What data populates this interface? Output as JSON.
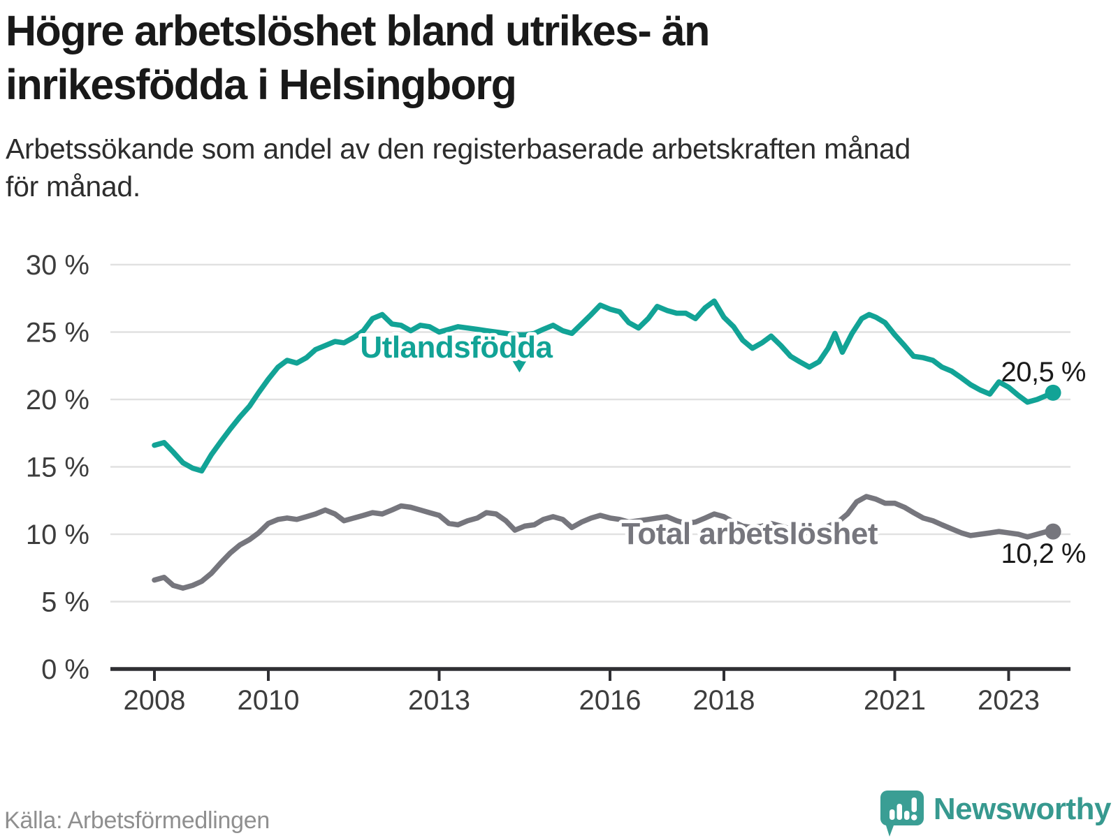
{
  "header": {
    "title_line1": "Högre arbetslöshet bland utrikes- än",
    "title_line2": "inrikesfödda i Helsingborg",
    "subtitle_line1": "Arbetssökande som andel av den registerbaserade arbetskraften månad",
    "subtitle_line2": "för månad."
  },
  "footer": {
    "source": "Källa: Arbetsförmedlingen",
    "brand": "Newsworthy"
  },
  "colors": {
    "teal": "#12a396",
    "gray": "#76767d",
    "grid": "#e1e1e1",
    "axis": "#2f2f33",
    "tick_label": "#3d3d3d",
    "value_label": "#1a1a1a",
    "logo": "#3a9e94"
  },
  "chart_data": {
    "type": "line",
    "title": "Högre arbetslöshet bland utrikes- än inrikesfödda i Helsingborg",
    "subtitle": "Arbetssökande som andel av den registerbaserade arbetskraften månad för månad.",
    "xlabel": "",
    "ylabel": "",
    "grid": "horizontal",
    "x_range": [
      2007.9,
      2024.3
    ],
    "y_range": [
      0,
      31
    ],
    "x_ticks": [
      {
        "t": 2008,
        "label": "2008"
      },
      {
        "t": 2010,
        "label": "2010"
      },
      {
        "t": 2013,
        "label": "2013"
      },
      {
        "t": 2016,
        "label": "2016"
      },
      {
        "t": 2018,
        "label": "2018"
      },
      {
        "t": 2021,
        "label": "2021"
      },
      {
        "t": 2023,
        "label": "2023"
      }
    ],
    "y_ticks": [
      {
        "v": 30,
        "label": "30 %"
      },
      {
        "v": 25,
        "label": "25 %"
      },
      {
        "v": 20,
        "label": "20 %"
      },
      {
        "v": 15,
        "label": "15 %"
      },
      {
        "v": 10,
        "label": "10 %"
      },
      {
        "v": 5,
        "label": "5 %"
      },
      {
        "v": 0,
        "label": "0 %"
      }
    ],
    "series": [
      {
        "id": "utlandsfodda",
        "name": "Utlandsfödda",
        "color": "#12a396",
        "end_label": "20,5 %",
        "last_value": 20.5,
        "points": [
          [
            2008.0,
            16.6
          ],
          [
            2008.17,
            16.8
          ],
          [
            2008.33,
            16.1
          ],
          [
            2008.5,
            15.3
          ],
          [
            2008.67,
            14.9
          ],
          [
            2008.83,
            14.7
          ],
          [
            2009.0,
            15.9
          ],
          [
            2009.17,
            16.9
          ],
          [
            2009.33,
            17.8
          ],
          [
            2009.5,
            18.7
          ],
          [
            2009.67,
            19.5
          ],
          [
            2009.83,
            20.5
          ],
          [
            2010.0,
            21.5
          ],
          [
            2010.17,
            22.4
          ],
          [
            2010.33,
            22.9
          ],
          [
            2010.5,
            22.7
          ],
          [
            2010.67,
            23.1
          ],
          [
            2010.83,
            23.7
          ],
          [
            2011.0,
            24.0
          ],
          [
            2011.17,
            24.3
          ],
          [
            2011.33,
            24.2
          ],
          [
            2011.5,
            24.6
          ],
          [
            2011.67,
            25.1
          ],
          [
            2011.83,
            26.0
          ],
          [
            2012.0,
            26.3
          ],
          [
            2012.17,
            25.6
          ],
          [
            2012.33,
            25.5
          ],
          [
            2012.5,
            25.1
          ],
          [
            2012.67,
            25.5
          ],
          [
            2012.83,
            25.4
          ],
          [
            2013.0,
            25.0
          ],
          [
            2013.17,
            25.2
          ],
          [
            2013.33,
            25.4
          ],
          [
            2013.5,
            25.3
          ],
          [
            2013.67,
            25.2
          ],
          [
            2013.83,
            25.1
          ],
          [
            2014.0,
            25.0
          ],
          [
            2014.17,
            24.9
          ],
          [
            2014.33,
            24.8
          ],
          [
            2014.5,
            24.8
          ],
          [
            2014.67,
            24.9
          ],
          [
            2014.83,
            25.2
          ],
          [
            2015.0,
            25.5
          ],
          [
            2015.17,
            25.1
          ],
          [
            2015.33,
            24.9
          ],
          [
            2015.5,
            25.6
          ],
          [
            2015.67,
            26.3
          ],
          [
            2015.83,
            27.0
          ],
          [
            2016.0,
            26.7
          ],
          [
            2016.17,
            26.5
          ],
          [
            2016.33,
            25.7
          ],
          [
            2016.5,
            25.3
          ],
          [
            2016.67,
            26.0
          ],
          [
            2016.83,
            26.9
          ],
          [
            2017.0,
            26.6
          ],
          [
            2017.17,
            26.4
          ],
          [
            2017.33,
            26.4
          ],
          [
            2017.5,
            26.0
          ],
          [
            2017.67,
            26.8
          ],
          [
            2017.83,
            27.3
          ],
          [
            2018.0,
            26.1
          ],
          [
            2018.17,
            25.4
          ],
          [
            2018.33,
            24.4
          ],
          [
            2018.5,
            23.8
          ],
          [
            2018.67,
            24.2
          ],
          [
            2018.83,
            24.7
          ],
          [
            2019.0,
            24.0
          ],
          [
            2019.17,
            23.2
          ],
          [
            2019.33,
            22.8
          ],
          [
            2019.5,
            22.4
          ],
          [
            2019.67,
            22.8
          ],
          [
            2019.83,
            23.8
          ],
          [
            2019.95,
            24.9
          ],
          [
            2020.08,
            23.5
          ],
          [
            2020.25,
            24.9
          ],
          [
            2020.42,
            26.0
          ],
          [
            2020.55,
            26.3
          ],
          [
            2020.67,
            26.1
          ],
          [
            2020.83,
            25.7
          ],
          [
            2021.0,
            24.8
          ],
          [
            2021.17,
            24.0
          ],
          [
            2021.33,
            23.2
          ],
          [
            2021.5,
            23.1
          ],
          [
            2021.67,
            22.9
          ],
          [
            2021.83,
            22.4
          ],
          [
            2022.0,
            22.1
          ],
          [
            2022.17,
            21.6
          ],
          [
            2022.33,
            21.1
          ],
          [
            2022.5,
            20.7
          ],
          [
            2022.67,
            20.4
          ],
          [
            2022.83,
            21.3
          ],
          [
            2023.0,
            20.9
          ],
          [
            2023.17,
            20.3
          ],
          [
            2023.33,
            19.8
          ],
          [
            2023.5,
            20.0
          ],
          [
            2023.67,
            20.3
          ],
          [
            2023.78,
            20.5
          ]
        ]
      },
      {
        "id": "total",
        "name": "Total arbetslöshet",
        "color": "#76767d",
        "end_label": "10,2 %",
        "last_value": 10.2,
        "points": [
          [
            2008.0,
            6.6
          ],
          [
            2008.17,
            6.8
          ],
          [
            2008.33,
            6.2
          ],
          [
            2008.5,
            6.0
          ],
          [
            2008.67,
            6.2
          ],
          [
            2008.83,
            6.5
          ],
          [
            2009.0,
            7.1
          ],
          [
            2009.17,
            7.9
          ],
          [
            2009.33,
            8.6
          ],
          [
            2009.5,
            9.2
          ],
          [
            2009.67,
            9.6
          ],
          [
            2009.83,
            10.1
          ],
          [
            2010.0,
            10.8
          ],
          [
            2010.17,
            11.1
          ],
          [
            2010.33,
            11.2
          ],
          [
            2010.5,
            11.1
          ],
          [
            2010.67,
            11.3
          ],
          [
            2010.83,
            11.5
          ],
          [
            2011.0,
            11.8
          ],
          [
            2011.17,
            11.5
          ],
          [
            2011.33,
            11.0
          ],
          [
            2011.5,
            11.2
          ],
          [
            2011.67,
            11.4
          ],
          [
            2011.83,
            11.6
          ],
          [
            2012.0,
            11.5
          ],
          [
            2012.17,
            11.8
          ],
          [
            2012.33,
            12.1
          ],
          [
            2012.5,
            12.0
          ],
          [
            2012.67,
            11.8
          ],
          [
            2012.83,
            11.6
          ],
          [
            2013.0,
            11.4
          ],
          [
            2013.17,
            10.8
          ],
          [
            2013.33,
            10.7
          ],
          [
            2013.5,
            11.0
          ],
          [
            2013.67,
            11.2
          ],
          [
            2013.83,
            11.6
          ],
          [
            2014.0,
            11.5
          ],
          [
            2014.17,
            11.0
          ],
          [
            2014.33,
            10.3
          ],
          [
            2014.5,
            10.6
          ],
          [
            2014.67,
            10.7
          ],
          [
            2014.83,
            11.1
          ],
          [
            2015.0,
            11.3
          ],
          [
            2015.17,
            11.1
          ],
          [
            2015.33,
            10.5
          ],
          [
            2015.5,
            10.9
          ],
          [
            2015.67,
            11.2
          ],
          [
            2015.83,
            11.4
          ],
          [
            2016.0,
            11.2
          ],
          [
            2016.17,
            11.1
          ],
          [
            2016.33,
            10.9
          ],
          [
            2016.5,
            11.0
          ],
          [
            2016.67,
            11.1
          ],
          [
            2016.83,
            11.2
          ],
          [
            2017.0,
            11.3
          ],
          [
            2017.17,
            11.0
          ],
          [
            2017.33,
            10.8
          ],
          [
            2017.5,
            10.9
          ],
          [
            2017.67,
            11.2
          ],
          [
            2017.83,
            11.5
          ],
          [
            2018.0,
            11.3
          ],
          [
            2018.17,
            10.9
          ],
          [
            2018.33,
            10.6
          ],
          [
            2018.5,
            10.5
          ],
          [
            2018.67,
            10.6
          ],
          [
            2018.83,
            10.8
          ],
          [
            2019.0,
            10.6
          ],
          [
            2019.17,
            10.4
          ],
          [
            2019.33,
            10.2
          ],
          [
            2019.5,
            10.1
          ],
          [
            2019.67,
            10.3
          ],
          [
            2019.83,
            10.6
          ],
          [
            2020.0,
            10.9
          ],
          [
            2020.17,
            11.5
          ],
          [
            2020.33,
            12.4
          ],
          [
            2020.5,
            12.8
          ],
          [
            2020.67,
            12.6
          ],
          [
            2020.83,
            12.3
          ],
          [
            2021.0,
            12.3
          ],
          [
            2021.17,
            12.0
          ],
          [
            2021.33,
            11.6
          ],
          [
            2021.5,
            11.2
          ],
          [
            2021.67,
            11.0
          ],
          [
            2021.83,
            10.7
          ],
          [
            2022.0,
            10.4
          ],
          [
            2022.17,
            10.1
          ],
          [
            2022.33,
            9.9
          ],
          [
            2022.5,
            10.0
          ],
          [
            2022.67,
            10.1
          ],
          [
            2022.83,
            10.2
          ],
          [
            2023.0,
            10.1
          ],
          [
            2023.17,
            10.0
          ],
          [
            2023.33,
            9.8
          ],
          [
            2023.5,
            10.0
          ],
          [
            2023.67,
            10.2
          ],
          [
            2023.78,
            10.2
          ]
        ]
      }
    ],
    "annotations": [
      {
        "series": "utlandsfodda",
        "text": "Utlandsfödda",
        "t": 2013.3,
        "v_baseline": 23.1,
        "color": "#12a396",
        "arrow": {
          "t": 2014.41,
          "v_top": 22.95,
          "v_apex": 22.0
        }
      },
      {
        "series": "total",
        "text": "Total arbetslöshet",
        "t": 2018.45,
        "v_baseline": 9.27,
        "color": "#76767d",
        "arrow": null
      }
    ],
    "legend_position": "inline-labels"
  }
}
